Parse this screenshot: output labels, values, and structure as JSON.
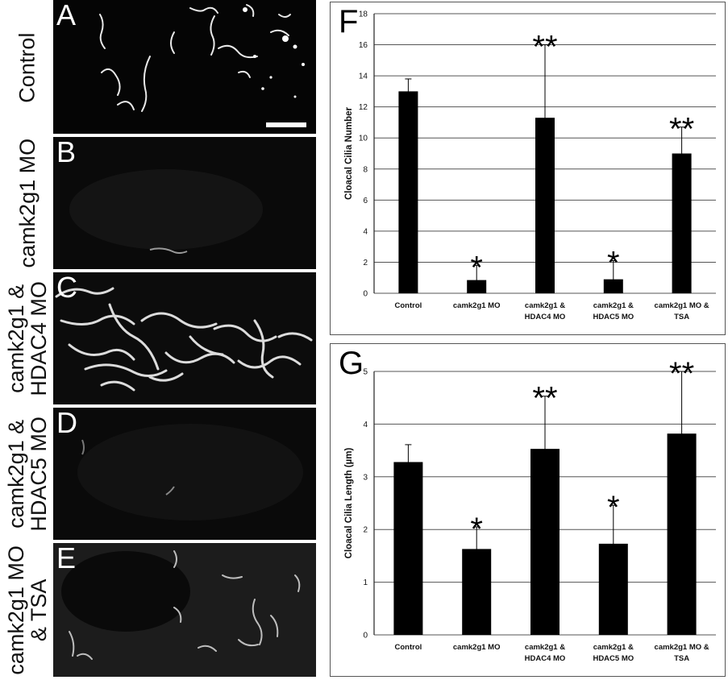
{
  "microscopy": {
    "panels": [
      {
        "letter": "A",
        "label_lines": [
          "Control"
        ],
        "has_scale_bar": true,
        "signal": "moderate"
      },
      {
        "letter": "B",
        "label_lines": [
          "camk2g1 MO"
        ],
        "has_scale_bar": false,
        "signal": "faint"
      },
      {
        "letter": "C",
        "label_lines": [
          "camk2g1 &",
          "HDAC4 MO"
        ],
        "has_scale_bar": false,
        "signal": "strong"
      },
      {
        "letter": "D",
        "label_lines": [
          "camk2g1 &",
          "HDAC5 MO"
        ],
        "has_scale_bar": false,
        "signal": "faint"
      },
      {
        "letter": "E",
        "label_lines": [
          "camk2g1 MO",
          "& TSA"
        ],
        "has_scale_bar": false,
        "signal": "moderate"
      }
    ]
  },
  "chart_data": [
    {
      "panel": "F",
      "type": "bar",
      "ylabel": "Cloacal Cilia Number",
      "ylim": [
        0,
        18
      ],
      "yticks": [
        0,
        2,
        4,
        6,
        8,
        10,
        12,
        14,
        16,
        18
      ],
      "grid": true,
      "categories": [
        [
          "Control"
        ],
        [
          "camk2g1 MO"
        ],
        [
          "camk2g1 &",
          "HDAC4 MO"
        ],
        [
          "camk2g1 &",
          "HDAC5 MO"
        ],
        [
          "camk2g1 MO &",
          "TSA"
        ]
      ],
      "values": [
        13.0,
        0.85,
        11.3,
        0.9,
        9.0
      ],
      "errors": [
        0.8,
        0.95,
        4.7,
        1.2,
        1.7
      ],
      "significance": [
        "",
        "*",
        "**",
        "*",
        "**"
      ],
      "bar_color": "#000000"
    },
    {
      "panel": "G",
      "type": "bar",
      "ylabel": "Cloacal Cilia Length (µm)",
      "ylim": [
        0,
        5
      ],
      "yticks": [
        0,
        1,
        2,
        3,
        4,
        5
      ],
      "grid": true,
      "categories": [
        [
          "Control"
        ],
        [
          "camk2g1 MO"
        ],
        [
          "camk2g1 &",
          "HDAC4 MO"
        ],
        [
          "camk2g1 &",
          "HDAC5 MO"
        ],
        [
          "camk2g1 MO &",
          "TSA"
        ]
      ],
      "values": [
        3.28,
        1.63,
        3.53,
        1.73,
        3.82
      ],
      "errors": [
        0.33,
        0.42,
        1.0,
        0.73,
        1.18
      ],
      "significance": [
        "",
        "*",
        "**",
        "*",
        "**"
      ],
      "bar_color": "#000000"
    }
  ]
}
